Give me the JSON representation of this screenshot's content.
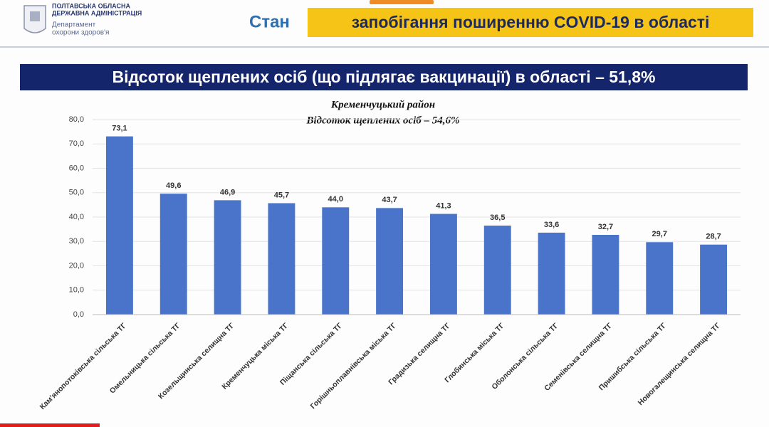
{
  "header": {
    "org_line1": "ПОЛТАВСЬКА ОБЛАСНА",
    "org_line2": "ДЕРЖАВНА АДМІНІСТРАЦІЯ",
    "dept_line1": "Департамент",
    "dept_line2": "охорони здоров'я",
    "title_left": "Стан",
    "title_right": "запобігання поширенню COVID-19 в області"
  },
  "banner": "Відсоток щеплених осіб (що підлягає вакцинації) в області – 51,8%",
  "chart_data": {
    "type": "bar",
    "title": "Кременчуцький район",
    "subtitle": "Відсоток щеплених осіб – 54,6%",
    "categories": [
      "Кам'янопотоківська сільська ТГ",
      "Омельницька сільська ТГ",
      "Козельщинська селищна ТГ",
      "Кременчуцька міська ТГ",
      "Піщанська сільська ТГ",
      "Горішньоплавнівська міська ТГ",
      "Градизька селищна ТГ",
      "Глобинська міська ТГ",
      "Оболонська сільська ТГ",
      "Семенівська селищна ТГ",
      "Пришибська сільська ТГ",
      "Новогалещинська селищна ТГ"
    ],
    "values": [
      73.1,
      49.6,
      46.9,
      45.7,
      44.0,
      43.7,
      41.3,
      36.5,
      33.6,
      32.7,
      29.7,
      28.7
    ],
    "value_labels": [
      "73,1",
      "49,6",
      "46,9",
      "45,7",
      "44,0",
      "43,7",
      "41,3",
      "36,5",
      "33,6",
      "32,7",
      "29,7",
      "28,7"
    ],
    "color": "#4a74c9",
    "ylim": [
      0,
      80
    ],
    "yticks": [
      {
        "value": 0,
        "label": "0,0"
      },
      {
        "value": 10,
        "label": "10,0"
      },
      {
        "value": 20,
        "label": "20,0"
      },
      {
        "value": 30,
        "label": "30,0"
      },
      {
        "value": 40,
        "label": "40,0"
      },
      {
        "value": 50,
        "label": "50,0"
      },
      {
        "value": 60,
        "label": "60,0"
      },
      {
        "value": 70,
        "label": "70,0"
      },
      {
        "value": 80,
        "label": "80,0"
      }
    ],
    "grid": true
  }
}
